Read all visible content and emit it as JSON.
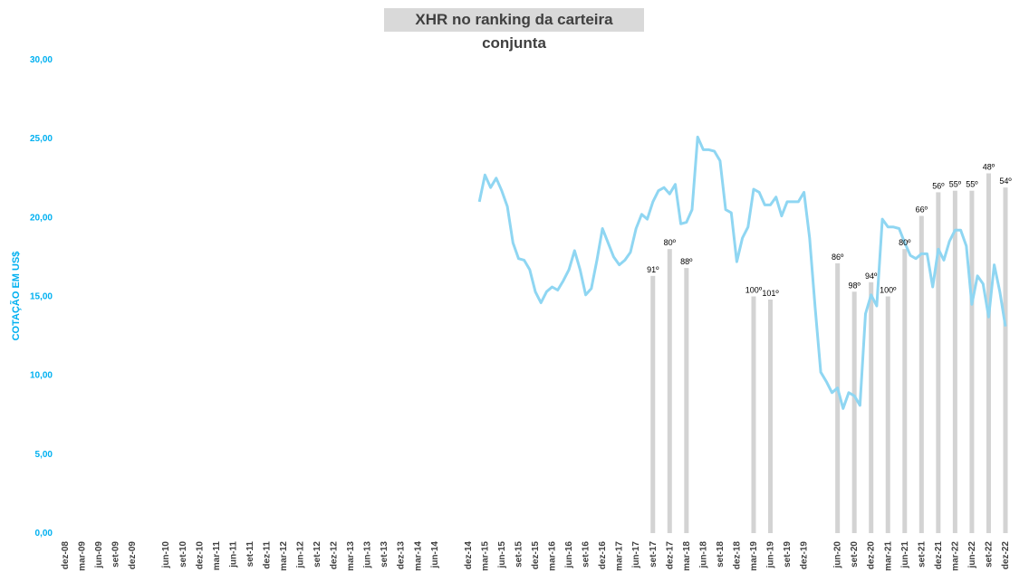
{
  "chart_data": {
    "type": "line",
    "title": "XHR no ranking da carteira conjunta",
    "xlabel": "",
    "ylabel": "COTAÇÃO EM US$",
    "ylim": [
      0,
      30
    ],
    "yticks": [
      "0,00",
      "5,00",
      "10,00",
      "15,00",
      "20,00",
      "25,00",
      "30,00"
    ],
    "grid": false,
    "legend": "none",
    "colors": {
      "line": "#8fd6f2",
      "bars": "#d3d3d3",
      "axis_text": "#00b0f0"
    },
    "x_tick_labels": [
      "dez-08",
      "mar-09",
      "jun-09",
      "set-09",
      "dez-09",
      "jun-10",
      "set-10",
      "dez-10",
      "mar-11",
      "jun-11",
      "set-11",
      "dez-11",
      "mar-12",
      "jun-12",
      "set-12",
      "dez-12",
      "mar-13",
      "jun-13",
      "set-13",
      "dez-13",
      "mar-14",
      "jun-14",
      "dez-14",
      "mar-15",
      "jun-15",
      "set-15",
      "dez-15",
      "mar-16",
      "jun-16",
      "set-16",
      "dez-16",
      "mar-17",
      "jun-17",
      "set-17",
      "dez-17",
      "mar-18",
      "jun-18",
      "set-18",
      "dez-18",
      "mar-19",
      "jun-19",
      "set-19",
      "dez-19",
      "jun-20",
      "set-20",
      "dez-20",
      "mar-21",
      "jun-21",
      "set-21",
      "dez-21",
      "mar-22",
      "jun-22",
      "set-22",
      "dez-22"
    ],
    "series": [
      {
        "kind": "line",
        "start_month": "fev-15",
        "values": [
          21.0,
          22.7,
          21.9,
          22.5,
          21.7,
          20.7,
          18.4,
          17.4,
          17.3,
          16.7,
          15.3,
          14.6,
          15.3,
          15.6,
          15.4,
          16.0,
          16.7,
          17.9,
          16.7,
          15.1,
          15.5,
          17.3,
          19.3,
          18.4,
          17.5,
          17.0,
          17.3,
          17.8,
          19.3,
          20.2,
          19.9,
          21.0,
          21.7,
          21.9,
          21.5,
          22.1,
          19.6,
          19.7,
          20.5,
          25.1,
          24.3,
          24.3,
          24.2,
          23.6,
          20.5,
          20.3,
          17.2,
          18.7,
          19.4,
          21.8,
          21.6,
          20.8,
          20.8,
          21.3,
          20.1,
          21.0,
          21.0,
          21.0,
          21.6,
          18.7,
          14.3,
          10.2,
          9.6,
          8.9,
          9.2,
          7.9,
          8.9,
          8.7,
          8.1,
          13.9,
          15.1,
          14.4,
          19.9,
          19.4,
          19.4,
          19.3,
          18.4,
          17.6,
          17.4,
          17.7,
          17.7,
          15.6,
          18.0,
          17.3,
          18.5,
          19.2,
          19.2,
          18.2,
          14.5,
          16.3,
          15.8,
          13.7,
          17.0,
          15.3,
          13.1
        ]
      },
      {
        "kind": "bars",
        "label_note": "ranking",
        "bars": [
          {
            "month": "set-17",
            "value": 16.3,
            "label": "91º"
          },
          {
            "month": "dez-17",
            "value": 18.0,
            "label": "80º"
          },
          {
            "month": "mar-18",
            "value": 16.8,
            "label": "88º"
          },
          {
            "month": "mar-19",
            "value": 15.0,
            "label": "100º"
          },
          {
            "month": "jun-19",
            "value": 14.8,
            "label": "101º"
          },
          {
            "month": "jun-20",
            "value": 17.1,
            "label": "86º"
          },
          {
            "month": "set-20",
            "value": 15.3,
            "label": "98º"
          },
          {
            "month": "dez-20",
            "value": 15.9,
            "label": "94º"
          },
          {
            "month": "mar-21",
            "value": 15.0,
            "label": "100º"
          },
          {
            "month": "jun-21",
            "value": 18.0,
            "label": "80º"
          },
          {
            "month": "set-21",
            "value": 20.1,
            "label": "66º"
          },
          {
            "month": "dez-21",
            "value": 21.6,
            "label": "56º"
          },
          {
            "month": "mar-22",
            "value": 21.7,
            "label": "55º"
          },
          {
            "month": "jun-22",
            "value": 21.7,
            "label": "55º"
          },
          {
            "month": "set-22",
            "value": 22.8,
            "label": "48º"
          },
          {
            "month": "dez-22",
            "value": 21.9,
            "label": "54º"
          }
        ]
      }
    ]
  }
}
